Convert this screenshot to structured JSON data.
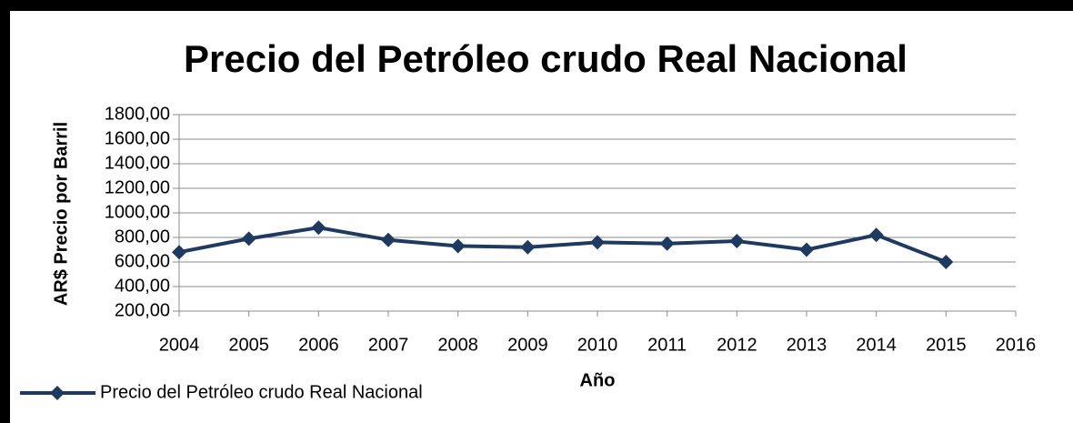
{
  "chart_data": {
    "type": "line",
    "title": "Precio del Petróleo crudo Real Nacional",
    "x_label": "Año",
    "y_label": "AR$ Precio por Barril",
    "x": [
      2004,
      2005,
      2006,
      2007,
      2008,
      2009,
      2010,
      2011,
      2012,
      2013,
      2014,
      2015
    ],
    "series": [
      {
        "name": "Precio del Petróleo crudo Real Nacional",
        "color": "#1f3a60",
        "values": [
          680,
          790,
          880,
          780,
          730,
          720,
          760,
          750,
          770,
          700,
          820,
          600
        ]
      }
    ],
    "xlim": [
      2004,
      2016
    ],
    "xticks": [
      2004,
      2005,
      2006,
      2007,
      2008,
      2009,
      2010,
      2011,
      2012,
      2013,
      2014,
      2015,
      2016
    ],
    "ylim": [
      200,
      1800
    ],
    "yticks": [
      {
        "value": 200,
        "label": "200,00"
      },
      {
        "value": 400,
        "label": "400,00"
      },
      {
        "value": 600,
        "label": "600,00"
      },
      {
        "value": 800,
        "label": "800,00"
      },
      {
        "value": 1000,
        "label": "1000,00"
      },
      {
        "value": 1200,
        "label": "1200,00"
      },
      {
        "value": 1400,
        "label": "1400,00"
      },
      {
        "value": 1600,
        "label": "1600,00"
      },
      {
        "value": 1800,
        "label": "1800,00"
      }
    ],
    "grid": true,
    "legend": "bottom-left"
  }
}
